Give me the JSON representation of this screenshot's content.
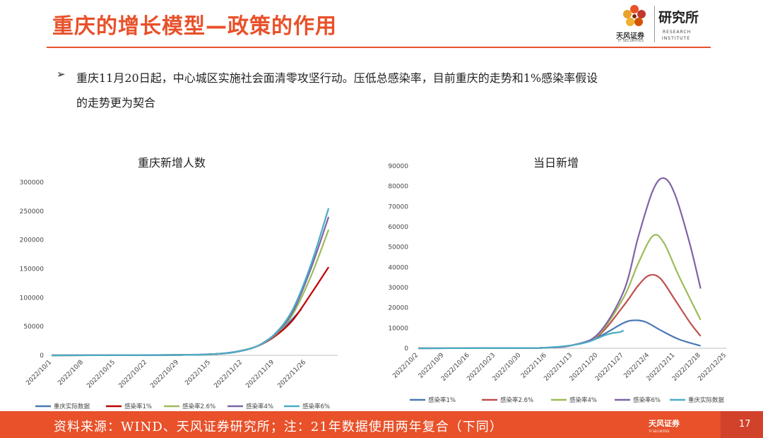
{
  "header": {
    "title": "重庆的增长模型—政策的作用",
    "logo_cn": "天风证券",
    "logo_en": "TF SECURITIES",
    "logo_research": "研究所",
    "logo_research_en1": "RESEARCH",
    "logo_research_en2": "INSTITUTE"
  },
  "bullet": {
    "marker": "➢",
    "line1": "重庆11月20日起，中心城区实施社会面清零攻坚行动。压低总感染率，目前重庆的走势和1%感染率假设",
    "line2": "的走势更为契合"
  },
  "footer": {
    "source": "资料来源：WIND、天风证券研究所；注：21年数据使用两年复合（下同）",
    "logo_cn": "天风证券",
    "logo_en": "TF SECURITIES",
    "page": "17"
  },
  "colors": {
    "accent": "#e8512a",
    "footer_bg": "#e8512a",
    "actual": "#4a79b4",
    "rate1": "#c00000",
    "rate26": "#9bbb59",
    "rate4": "#7f63a6",
    "rate6": "#4bacc6"
  },
  "chart_data": [
    {
      "type": "line",
      "title": "重庆新增人数",
      "ylim": [
        0,
        300000
      ],
      "y_ticks": [
        "0",
        "50000",
        "100000",
        "150000",
        "200000",
        "250000",
        "300000"
      ],
      "x_ticks": [
        "2022/10/1",
        "2022/10/8",
        "2022/10/15",
        "2022/10/22",
        "2022/10/29",
        "2022/11/5",
        "2022/11/12",
        "2022/11/19",
        "2022/11/26"
      ],
      "legend_position": "bottom",
      "series": [
        {
          "name": "重庆实际数据",
          "color": "#4a79b4",
          "points": [
            [
              0,
              0
            ],
            [
              14,
              300
            ],
            [
              28,
              800
            ],
            [
              35,
              2000
            ],
            [
              40,
              5000
            ],
            [
              45,
              15000
            ],
            [
              49,
              35000
            ],
            [
              52,
              55000
            ],
            [
              55,
              80000
            ]
          ]
        },
        {
          "name": "感染率1%",
          "color": "#c00000",
          "points": [
            [
              0,
              0
            ],
            [
              14,
              200
            ],
            [
              28,
              600
            ],
            [
              35,
              1800
            ],
            [
              40,
              5500
            ],
            [
              45,
              15000
            ],
            [
              49,
              32000
            ],
            [
              53,
              60000
            ],
            [
              57,
              105000
            ],
            [
              61,
              153000
            ]
          ]
        },
        {
          "name": "感染率2.6%",
          "color": "#9bbb59",
          "points": [
            [
              0,
              0
            ],
            [
              14,
              200
            ],
            [
              28,
              600
            ],
            [
              35,
              1800
            ],
            [
              40,
              5500
            ],
            [
              45,
              15000
            ],
            [
              49,
              34000
            ],
            [
              53,
              70000
            ],
            [
              57,
              135000
            ],
            [
              61,
              218000
            ]
          ]
        },
        {
          "name": "感染率4%",
          "color": "#7f63a6",
          "points": [
            [
              0,
              0
            ],
            [
              14,
              200
            ],
            [
              28,
              600
            ],
            [
              35,
              1800
            ],
            [
              40,
              5500
            ],
            [
              45,
              15000
            ],
            [
              49,
              35000
            ],
            [
              53,
              74000
            ],
            [
              57,
              148000
            ],
            [
              61,
              240000
            ]
          ]
        },
        {
          "name": "感染率6%",
          "color": "#4bacc6",
          "points": [
            [
              0,
              0
            ],
            [
              14,
              200
            ],
            [
              28,
              600
            ],
            [
              35,
              1800
            ],
            [
              40,
              5500
            ],
            [
              45,
              15000
            ],
            [
              49,
              36000
            ],
            [
              53,
              78000
            ],
            [
              57,
              155000
            ],
            [
              61,
              255000
            ]
          ]
        }
      ]
    },
    {
      "type": "line",
      "title": "当日新增",
      "ylim": [
        0,
        90000
      ],
      "y_ticks": [
        "0",
        "10000",
        "20000",
        "30000",
        "40000",
        "50000",
        "60000",
        "70000",
        "80000",
        "90000"
      ],
      "x_ticks": [
        "2022/10/2",
        "2022/10/9",
        "2022/10/16",
        "2022/10/23",
        "2022/10/30",
        "2022/11/6",
        "2022/11/13",
        "2022/11/20",
        "2022/11/27",
        "2022/12/4",
        "2022/12/11",
        "2022/12/18",
        "2022/12/25"
      ],
      "legend_position": "bottom",
      "series": [
        {
          "name": "感染率1%",
          "color": "#4a79b4",
          "points": [
            [
              0,
              0
            ],
            [
              28,
              100
            ],
            [
              35,
              300
            ],
            [
              42,
              1500
            ],
            [
              49,
              5500
            ],
            [
              56,
              12500
            ],
            [
              59,
              13800
            ],
            [
              62,
              13000
            ],
            [
              66,
              9000
            ],
            [
              71,
              4500
            ],
            [
              77,
              1200
            ]
          ]
        },
        {
          "name": "感染率2.6%",
          "color": "#c0504d",
          "points": [
            [
              0,
              0
            ],
            [
              28,
              100
            ],
            [
              35,
              300
            ],
            [
              42,
              1500
            ],
            [
              49,
              6000
            ],
            [
              56,
              21000
            ],
            [
              60,
              31000
            ],
            [
              63,
              36000
            ],
            [
              66,
              34500
            ],
            [
              70,
              24000
            ],
            [
              74,
              13000
            ],
            [
              77,
              6000
            ]
          ]
        },
        {
          "name": "感染率4%",
          "color": "#9bbb59",
          "points": [
            [
              0,
              0
            ],
            [
              28,
              100
            ],
            [
              35,
              300
            ],
            [
              42,
              1500
            ],
            [
              49,
              6500
            ],
            [
              56,
              25000
            ],
            [
              60,
              42000
            ],
            [
              64,
              55500
            ],
            [
              67,
              52000
            ],
            [
              71,
              36000
            ],
            [
              77,
              14000
            ]
          ]
        },
        {
          "name": "感染率6%",
          "color": "#7f63a6",
          "points": [
            [
              0,
              0
            ],
            [
              28,
              100
            ],
            [
              35,
              300
            ],
            [
              42,
              1500
            ],
            [
              49,
              7000
            ],
            [
              56,
              28000
            ],
            [
              60,
              55000
            ],
            [
              64,
              78000
            ],
            [
              67,
              84000
            ],
            [
              70,
              76000
            ],
            [
              74,
              52000
            ],
            [
              77,
              29500
            ]
          ]
        },
        {
          "name": "重庆实际数据",
          "color": "#4bacc6",
          "points": [
            [
              0,
              0
            ],
            [
              28,
              100
            ],
            [
              35,
              300
            ],
            [
              42,
              1500
            ],
            [
              46,
              3000
            ],
            [
              49,
              5000
            ],
            [
              51,
              6500
            ],
            [
              53,
              7500
            ],
            [
              55,
              8000
            ],
            [
              56,
              8800
            ]
          ]
        }
      ]
    }
  ]
}
